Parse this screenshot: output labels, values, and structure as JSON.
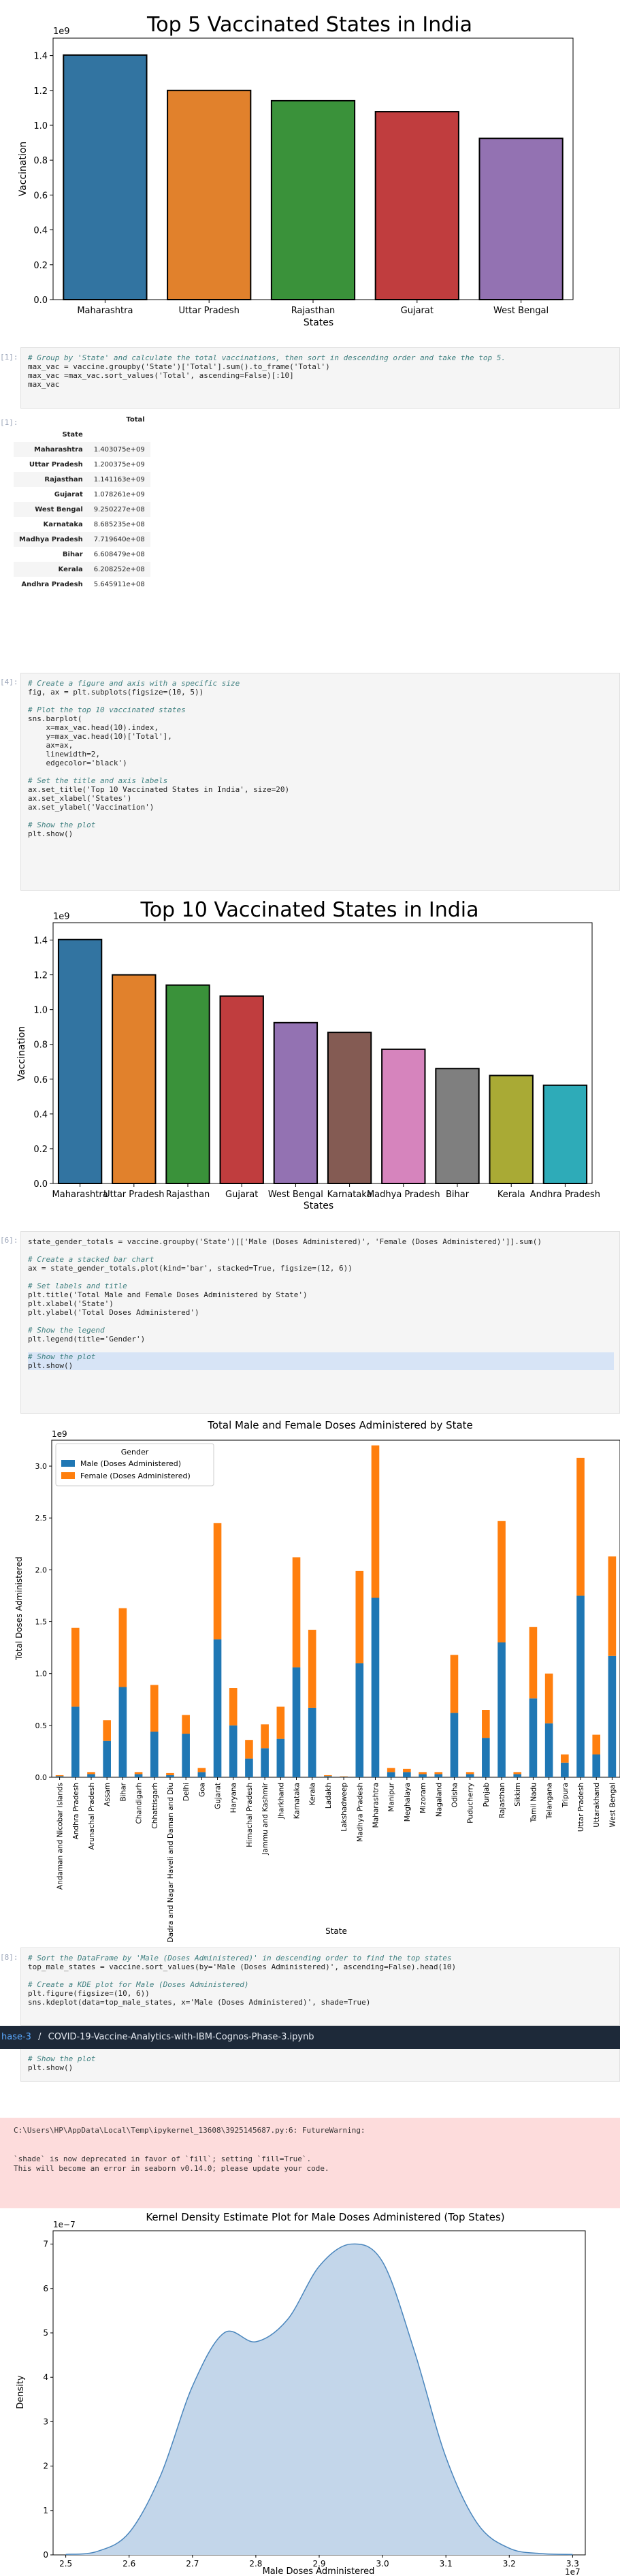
{
  "charts": {
    "top5": {
      "title": "Top 5 Vaccinated States in India",
      "xlabel": "States",
      "ylabel": "Vaccination",
      "exponent": "1e9",
      "yticks": [
        "0.0",
        "0.2",
        "0.4",
        "0.6",
        "0.8",
        "1.0",
        "1.2",
        "1.4"
      ]
    },
    "top10": {
      "title": "Top 10 Vaccinated States in India",
      "xlabel": "States",
      "ylabel": "Vaccination",
      "exponent": "1e9",
      "yticks": [
        "0.0",
        "0.2",
        "0.4",
        "0.6",
        "0.8",
        "1.0",
        "1.2",
        "1.4"
      ]
    },
    "stacked": {
      "title": "Total Male and Female Doses Administered by State",
      "xlabel": "State",
      "ylabel": "Total Doses Administered",
      "exponent": "1e9",
      "legend_title": "Gender",
      "yticks": [
        "0.0",
        "0.5",
        "1.0",
        "1.5",
        "2.0",
        "2.5",
        "3.0"
      ]
    },
    "kde": {
      "title": "Kernel Density Estimate Plot for Male Doses Administered (Top States)",
      "xlabel": "Male Doses Administered",
      "ylabel": "Density",
      "y_exponent": "1e−7",
      "x_exponent": "1e7",
      "yticks": [
        "0",
        "1",
        "2",
        "3",
        "4",
        "5",
        "6",
        "7"
      ],
      "xticks": [
        "2.5",
        "2.6",
        "2.7",
        "2.8",
        "2.9",
        "3.0",
        "3.1",
        "3.2",
        "3.3"
      ]
    }
  },
  "chart_data": [
    {
      "type": "bar",
      "title": "Top 5 Vaccinated States in India",
      "xlabel": "States",
      "ylabel": "Vaccination",
      "categories": [
        "Maharashtra",
        "Uttar Pradesh",
        "Rajasthan",
        "Gujarat",
        "West Bengal"
      ],
      "values": [
        1403000000.0,
        1200000000.0,
        1141000000.0,
        1078000000.0,
        925000000.0
      ],
      "ylim": [
        0,
        1500000000.0
      ],
      "colors": [
        "#3274a1",
        "#e1812c",
        "#3a923a",
        "#c03d3e",
        "#9372b2"
      ]
    },
    {
      "type": "table",
      "index_name": "State",
      "columns": [
        "Total"
      ],
      "rows": [
        [
          "Maharashtra",
          "1.403075e+09"
        ],
        [
          "Uttar Pradesh",
          "1.200375e+09"
        ],
        [
          "Rajasthan",
          "1.141163e+09"
        ],
        [
          "Gujarat",
          "1.078261e+09"
        ],
        [
          "West Bengal",
          "9.250227e+08"
        ],
        [
          "Karnataka",
          "8.685235e+08"
        ],
        [
          "Madhya Pradesh",
          "7.719640e+08"
        ],
        [
          "Bihar",
          "6.608479e+08"
        ],
        [
          "Kerala",
          "6.208252e+08"
        ],
        [
          "Andhra Pradesh",
          "5.645911e+08"
        ]
      ]
    },
    {
      "type": "bar",
      "title": "Top 10 Vaccinated States in India",
      "xlabel": "States",
      "ylabel": "Vaccination",
      "categories": [
        "Maharashtra",
        "Uttar Pradesh",
        "Rajasthan",
        "Gujarat",
        "West Bengal",
        "Karnataka",
        "Madhya Pradesh",
        "Bihar",
        "Kerala",
        "Andhra Pradesh"
      ],
      "values": [
        1403000000.0,
        1200000000.0,
        1141000000.0,
        1078000000.0,
        925000000.0,
        869000000.0,
        772000000.0,
        661000000.0,
        621000000.0,
        565000000.0
      ],
      "ylim": [
        0,
        1500000000.0
      ],
      "colors": [
        "#3274a1",
        "#e1812c",
        "#3a923a",
        "#c03d3e",
        "#9372b2",
        "#845b53",
        "#d684bd",
        "#7f7f7f",
        "#a9aa35",
        "#2eabb8"
      ]
    },
    {
      "type": "bar",
      "stacked": true,
      "title": "Total Male and Female Doses Administered by State",
      "xlabel": "State",
      "ylabel": "Total Doses Administered",
      "ylim": [
        0,
        3250000000.0
      ],
      "categories": [
        "Andaman and Nicobar Islands",
        "Andhra Pradesh",
        "Arunachal Pradesh",
        "Assam",
        "Bihar",
        "Chandigarh",
        "Chhattisgarh",
        "Dadra and Nagar Haveli and Daman and Diu",
        "Delhi",
        "Goa",
        "Gujarat",
        "Haryana",
        "Himachal Pradesh",
        "Jammu and Kashmir",
        "Jharkhand",
        "Karnataka",
        "Kerala",
        "Ladakh",
        "Lakshadweep",
        "Madhya Pradesh",
        "Maharashtra",
        "Manipur",
        "Meghalaya",
        "Mizoram",
        "Nagaland",
        "Odisha",
        "Puducherry",
        "Punjab",
        "Rajasthan",
        "Sikkim",
        "Tamil Nadu",
        "Telangana",
        "Tripura",
        "Uttar Pradesh",
        "Uttarakhand",
        "West Bengal"
      ],
      "series": [
        {
          "name": "Male (Doses Administered)",
          "color": "#1f77b4",
          "values": [
            0.01,
            0.68,
            0.03,
            0.35,
            0.87,
            0.03,
            0.44,
            0.02,
            0.42,
            0.05,
            1.33,
            0.5,
            0.18,
            0.28,
            0.37,
            1.06,
            0.67,
            0.01,
            0.005,
            1.1,
            1.73,
            0.05,
            0.05,
            0.03,
            0.03,
            0.62,
            0.03,
            0.38,
            1.3,
            0.03,
            0.76,
            0.52,
            0.14,
            1.75,
            0.22,
            1.17
          ]
        },
        {
          "name": "Female (Doses Administered)",
          "color": "#ff7f0e",
          "values": [
            0.01,
            0.76,
            0.02,
            0.2,
            0.76,
            0.02,
            0.45,
            0.02,
            0.18,
            0.04,
            1.12,
            0.36,
            0.18,
            0.23,
            0.31,
            1.06,
            0.75,
            0.01,
            0.005,
            0.89,
            1.47,
            0.04,
            0.03,
            0.02,
            0.02,
            0.56,
            0.02,
            0.27,
            1.17,
            0.02,
            0.69,
            0.48,
            0.08,
            1.33,
            0.19,
            0.96
          ]
        }
      ]
    },
    {
      "type": "area",
      "title": "Kernel Density Estimate Plot for Male Doses Administered (Top States)",
      "xlabel": "Male Doses Administered",
      "ylabel": "Density",
      "xlim": [
        24800000.0,
        33200000.0
      ],
      "ylim": [
        0,
        7.3e-07
      ],
      "x": [
        25000000.0,
        25500000.0,
        26000000.0,
        26500000.0,
        27000000.0,
        27500000.0,
        28000000.0,
        28500000.0,
        29000000.0,
        29500000.0,
        30000000.0,
        30500000.0,
        31000000.0,
        31500000.0,
        32000000.0,
        32500000.0,
        33000000.0
      ],
      "y": [
        1e-09,
        8e-09,
        5e-08,
        1.8e-07,
        3.8e-07,
        5e-07,
        4.8e-07,
        5.3e-07,
        6.5e-07,
        7e-07,
        6.6e-07,
        4.6e-07,
        2.2e-07,
        7e-08,
        1.5e-08,
        3e-09,
        1e-09
      ],
      "fill": "#c3d6ea",
      "line": "#4a86bd"
    }
  ],
  "prompts": {
    "p1": "[1]:",
    "p2": "[1]:",
    "p3": "[4]:",
    "p4": "[6]:",
    "p5": "[8]:"
  },
  "cells": {
    "cell1": [
      "# Group by 'State' and calculate the total vaccinations, then sort in descending order and take the top 5.",
      "max_vac = vaccine.groupby('State')['Total'].sum().to_frame('Total')",
      "max_vac =max_vac.sort_values('Total', ascending=False)[:10]",
      "max_vac"
    ],
    "cell2": [
      "# Create a figure and axis with a specific size",
      "fig, ax = plt.subplots(figsize=(10, 5))",
      "",
      "# Plot the top 10 vaccinated states",
      "sns.barplot(",
      "    x=max_vac.head(10).index,",
      "    y=max_vac.head(10)['Total'],",
      "    ax=ax,",
      "    linewidth=2,",
      "    edgecolor='black')",
      "",
      "# Set the title and axis labels",
      "ax.set_title('Top 10 Vaccinated States in India', size=20)",
      "ax.set_xlabel('States')",
      "ax.set_ylabel('Vaccination')",
      "",
      "# Show the plot",
      "plt.show()"
    ],
    "cell3": [
      "state_gender_totals = vaccine.groupby('State')[['Male (Doses Administered)', 'Female (Doses Administered)']].sum()",
      "",
      "# Create a stacked bar chart",
      "ax = state_gender_totals.plot(kind='bar', stacked=True, figsize=(12, 6))",
      "",
      "# Set labels and title",
      "plt.title('Total Male and Female Doses Administered by State')",
      "plt.xlabel('State')",
      "plt.ylabel('Total Doses Administered')",
      "",
      "# Show the legend",
      "plt.legend(title='Gender')",
      "",
      "# Show the plot",
      "plt.show()"
    ],
    "cell4": [
      "# Sort the DataFrame by 'Male (Doses Administered)' in descending order to find the top states",
      "top_male_states = vaccine.sort_values(by='Male (Doses Administered)', ascending=False).head(10)",
      "",
      "# Create a KDE plot for Male (Doses Administered)",
      "plt.figure(figsize=(10, 6))",
      "sns.kdeplot(data=top_male_states, x='Male (Doses Administered)', shade=True)"
    ],
    "cell4_tail": [
      "# Show the plot",
      "plt.show()"
    ]
  },
  "table": {
    "col_header": "Total",
    "index_header": "State"
  },
  "navbar": {
    "crumb_prefix": "hase-3",
    "separator": "/",
    "filename": "COVID-19-Vaccine-Analytics-with-IBM-Cognos-Phase-3.ipynb"
  },
  "warning": {
    "line1": "C:\\Users\\HP\\AppData\\Local\\Temp\\ipykernel_13608\\3925145687.py:6: FutureWarning:",
    "line2": "",
    "line3": "`shade` is now deprecated in favor of `fill`; setting `fill=True`.",
    "line4": "This will become an error in seaborn v0.14.0; please update your code."
  }
}
